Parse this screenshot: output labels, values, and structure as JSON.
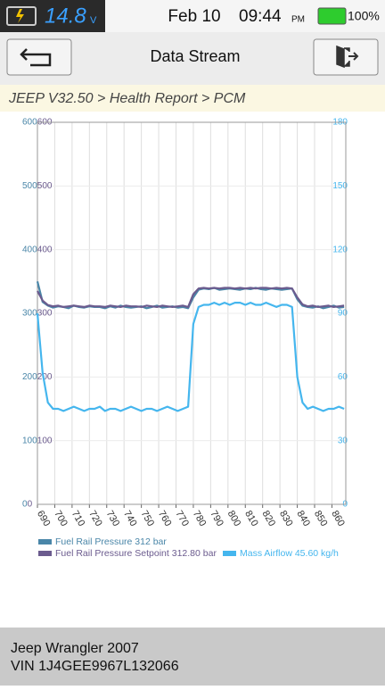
{
  "status_bar": {
    "voltage": "14.8",
    "voltage_unit": "V",
    "date": "Feb 10",
    "time": "09:44",
    "ampm": "PM",
    "battery": "100%"
  },
  "header": {
    "title": "Data Stream"
  },
  "breadcrumb": "JEEP V32.50 > Health Report > PCM",
  "chart_data": {
    "type": "line",
    "x": [
      690,
      693,
      696,
      699,
      702,
      705,
      708,
      711,
      714,
      717,
      720,
      723,
      726,
      729,
      732,
      735,
      738,
      741,
      744,
      747,
      750,
      753,
      756,
      759,
      762,
      765,
      768,
      771,
      774,
      777,
      780,
      783,
      786,
      789,
      792,
      795,
      798,
      801,
      804,
      807,
      810,
      813,
      816,
      819,
      822,
      825,
      828,
      831,
      834,
      837,
      840,
      843,
      846,
      849,
      852,
      855,
      858,
      861,
      864,
      867
    ],
    "xlim": [
      690,
      868
    ],
    "xticks": [
      690,
      700,
      710,
      720,
      730,
      740,
      750,
      760,
      770,
      780,
      790,
      800,
      810,
      820,
      830,
      840,
      850,
      860
    ],
    "ylim": [
      0,
      600
    ],
    "yticks": [
      0,
      100,
      200,
      300,
      400,
      500,
      600
    ],
    "y2lim": [
      0,
      180
    ],
    "y2ticks": [
      0,
      30,
      60,
      90,
      120,
      150,
      180
    ],
    "grid": true,
    "series": [
      {
        "name": "Fuel Rail Pressure 312 bar",
        "color": "#4a86a8",
        "values": [
          350,
          318,
          312,
          309,
          311,
          310,
          308,
          312,
          310,
          309,
          311,
          310,
          310,
          308,
          311,
          309,
          312,
          310,
          309,
          310,
          311,
          308,
          310,
          312,
          309,
          310,
          311,
          309,
          310,
          308,
          325,
          337,
          339,
          338,
          340,
          337,
          338,
          339,
          338,
          337,
          339,
          338,
          340,
          338,
          337,
          339,
          338,
          337,
          338,
          339,
          322,
          312,
          310,
          309,
          311,
          308,
          310,
          312,
          309,
          310
        ]
      },
      {
        "name": "Fuel Rail Pressure Setpoint 312.80 bar",
        "color": "#6b5b8e",
        "values": [
          335,
          320,
          313,
          311,
          312,
          310,
          311,
          312,
          311,
          310,
          312,
          311,
          311,
          310,
          312,
          311,
          310,
          312,
          311,
          311,
          310,
          312,
          311,
          310,
          312,
          311,
          310,
          311,
          312,
          310,
          330,
          339,
          340,
          339,
          340,
          339,
          340,
          340,
          339,
          340,
          339,
          340,
          339,
          340,
          340,
          339,
          340,
          339,
          340,
          339,
          325,
          314,
          311,
          312,
          310,
          311,
          312,
          310,
          311,
          312
        ]
      },
      {
        "name": "Mass Airflow 45.60 kg/h",
        "color": "#45b6ee",
        "axis": "y2",
        "values": [
          90,
          62,
          48,
          45,
          45,
          44,
          45,
          46,
          45,
          44,
          45,
          45,
          46,
          44,
          45,
          45,
          44,
          45,
          46,
          45,
          44,
          45,
          45,
          44,
          45,
          46,
          45,
          44,
          45,
          46,
          85,
          93,
          94,
          94,
          95,
          94,
          95,
          94,
          95,
          95,
          94,
          95,
          94,
          94,
          95,
          94,
          93,
          94,
          94,
          93,
          60,
          48,
          45,
          46,
          45,
          44,
          45,
          45,
          46,
          45
        ]
      }
    ]
  },
  "footer": {
    "vehicle": "Jeep Wrangler 2007",
    "vin": "VIN 1J4GEE9967L132066"
  }
}
